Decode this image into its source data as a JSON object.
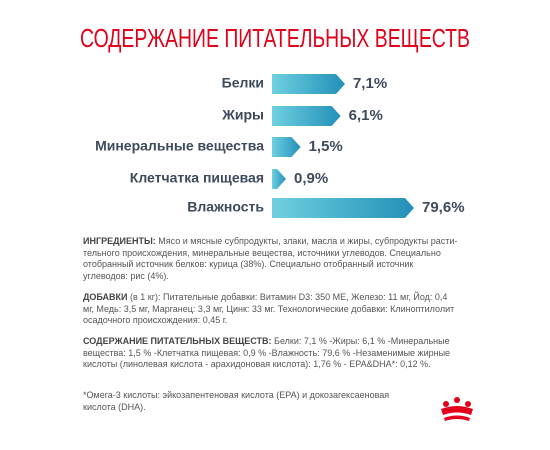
{
  "chart_data": {
    "type": "bar",
    "title": "СОДЕРЖАНИЕ ПИТАТЕЛЬНЫХ ВЕЩЕСТВ",
    "categories": [
      "Белки",
      "Жиры",
      "Минеральные вещества",
      "Клетчатка пищевая",
      "Влажность"
    ],
    "values": [
      7.1,
      6.1,
      1.5,
      0.9,
      79.6
    ],
    "value_labels": [
      "7,1%",
      "6,1%",
      "1,5%",
      "0,9%",
      "79,6%"
    ],
    "log_scale": true,
    "color": [
      "#6fd0e0",
      "#2290b8"
    ]
  },
  "sections": [
    {
      "label": "ИНГРЕДИЕНТЫ:",
      "text": "Мясо и мясные субпродукты, злаки, масла и жиры, субпродукты расти-тельного происхождения, минеральные вещества, источники углеводов. Специально отобранный источник белков: курица (38%). Специально отобранный источник углеводов: рис (4%)."
    },
    {
      "label": "ДОБАВКИ",
      "text": "(в 1 кг): Питательные добавки: Витамин D3: 350 МЕ, Железо: 11 мг, Йод: 0,4 мг, Медь: 3,5 мг, Марганец: 3,3 мг, Цинк: 33 мг. Технологические добавки: Клиноптилолит осадочного происхождения: 0,45 г."
    },
    {
      "label": "СОДЕРЖАНИЕ ПИТАТЕЛЬНЫХ ВЕЩЕСТВ:",
      "text": "Белки: 7,1 % -Жиры: 6,1 % -Минеральные вещества: 1,5 % -Клетчатка пищевая: 0,9 % -Влажность: 79,6 % -Незаменимые жирные кислоты (линолевая кислота - арахидоновая кислота): 1,76 % - EPA&DHA*: 0,12 %."
    }
  ],
  "footnote": "*Омега-3 кислоты: эйкозапентеновая кислота (EPA) и докозагексаеновая кислота (DHA)."
}
